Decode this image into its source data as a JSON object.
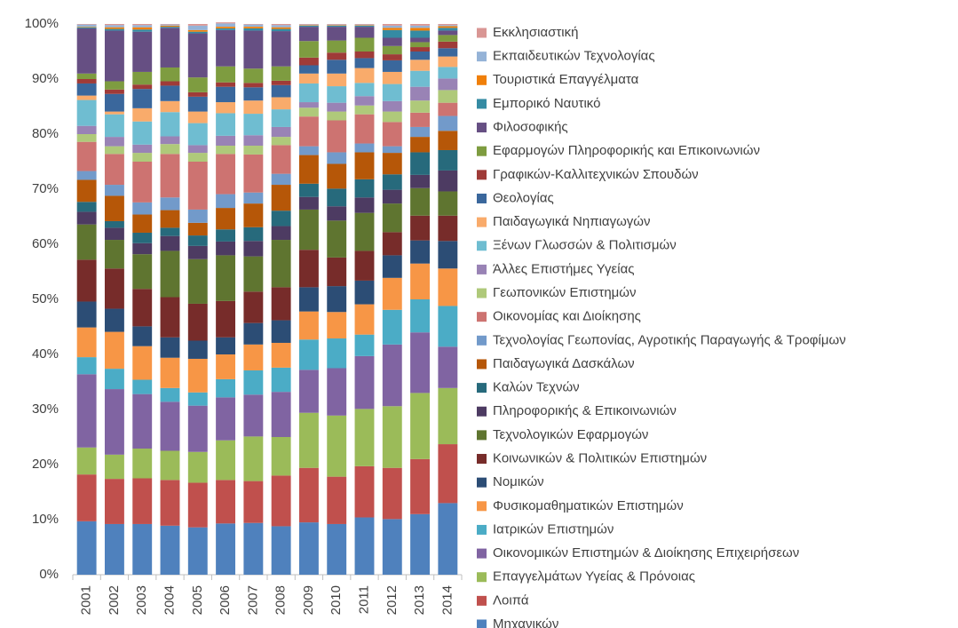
{
  "chart_data": {
    "type": "stacked_bar",
    "categories": [
      "2001",
      "2002",
      "2003",
      "2004",
      "2005",
      "2006",
      "2007",
      "2008",
      "2009",
      "2010",
      "2011",
      "2012",
      "2013",
      "2014"
    ],
    "ylim": [
      0,
      100
    ],
    "yticks": [
      {
        "value": 0,
        "label": "0%"
      },
      {
        "value": 10,
        "label": "10%"
      },
      {
        "value": 20,
        "label": "20%"
      },
      {
        "value": 30,
        "label": "30%"
      },
      {
        "value": 40,
        "label": "40%"
      },
      {
        "value": 50,
        "label": "50%"
      },
      {
        "value": 60,
        "label": "60%"
      },
      {
        "value": 70,
        "label": "70%"
      },
      {
        "value": 80,
        "label": "80%"
      },
      {
        "value": 90,
        "label": "90%"
      },
      {
        "value": 100,
        "label": "100%"
      }
    ],
    "grid": false,
    "legend": "right",
    "series": [
      {
        "name": "Μηχανικών",
        "color": "#4f81bd",
        "values": [
          9.7,
          9.2,
          9.2,
          8.9,
          8.6,
          9.3,
          9.4,
          8.8,
          9.5,
          9.2,
          10.4,
          10.1,
          11.0,
          13.0
        ]
      },
      {
        "name": "Λοιπά",
        "color": "#c0504d",
        "values": [
          8.5,
          8.2,
          8.3,
          8.3,
          8.1,
          7.9,
          7.6,
          9.2,
          9.9,
          8.6,
          9.3,
          9.3,
          10.0,
          10.7
        ]
      },
      {
        "name": "Επαγγελμάτων Υγείας & Πρόνοιας",
        "color": "#9bbb59",
        "values": [
          4.9,
          4.4,
          5.4,
          5.3,
          5.6,
          7.2,
          8.1,
          7.0,
          10.0,
          11.1,
          10.4,
          11.2,
          12.0,
          10.2
        ]
      },
      {
        "name": "Οικονομικών Επιστημών & Διοίκησης Επιχειρήσεων",
        "color": "#8064a2",
        "values": [
          13.3,
          11.9,
          9.9,
          8.9,
          8.4,
          7.8,
          7.6,
          8.2,
          7.8,
          8.6,
          9.6,
          11.2,
          11.0,
          7.5
        ]
      },
      {
        "name": "Ιατρικών Επιστημών",
        "color": "#4bacc6",
        "values": [
          3.1,
          3.7,
          2.6,
          2.5,
          2.4,
          3.3,
          4.4,
          4.4,
          5.5,
          5.4,
          3.9,
          6.3,
          6.0,
          7.4
        ]
      },
      {
        "name": "Φυσικομαθηματικών Επιστημών",
        "color": "#f79646",
        "values": [
          5.4,
          6.7,
          6.1,
          5.5,
          6.1,
          4.5,
          4.7,
          4.5,
          5.1,
          4.8,
          5.5,
          5.8,
          6.5,
          6.8
        ]
      },
      {
        "name": "Νομικών",
        "color": "#2c4d75",
        "values": [
          4.7,
          4.2,
          3.6,
          3.7,
          3.3,
          3.1,
          3.9,
          4.1,
          4.4,
          4.7,
          4.3,
          4.1,
          4.2,
          5.0
        ]
      },
      {
        "name": "Κοινωνικών & Πολιτικών Επιστημών",
        "color": "#772c2a",
        "values": [
          7.6,
          7.3,
          6.8,
          7.3,
          6.7,
          6.6,
          5.7,
          6.0,
          6.8,
          5.2,
          5.4,
          4.2,
          4.5,
          4.6
        ]
      },
      {
        "name": "Τεχνολογικών Εφαρμογών",
        "color": "#5f7530",
        "values": [
          6.4,
          5.2,
          6.3,
          8.4,
          8.1,
          8.3,
          6.4,
          8.6,
          7.3,
          6.7,
          6.9,
          5.2,
          5.0,
          4.4
        ]
      },
      {
        "name": "Πληροφορικής & Επικοινωνιών",
        "color": "#4d3b62",
        "values": [
          2.3,
          2.2,
          2.0,
          2.7,
          2.4,
          2.5,
          2.8,
          2.5,
          2.3,
          2.6,
          2.8,
          2.5,
          2.4,
          3.8
        ]
      },
      {
        "name": "Καλών Τεχνών",
        "color": "#276a7c",
        "values": [
          1.8,
          1.2,
          1.9,
          1.5,
          1.9,
          2.2,
          2.5,
          2.8,
          2.4,
          3.2,
          3.3,
          2.8,
          4.1,
          3.7
        ]
      },
      {
        "name": "Παιδαγωγικά Δασκάλων",
        "color": "#b65708",
        "values": [
          4.0,
          4.6,
          3.3,
          3.2,
          2.3,
          3.9,
          4.3,
          4.7,
          5.2,
          4.5,
          4.9,
          3.9,
          2.8,
          3.5
        ]
      },
      {
        "name": "Τεχνολογίας Γεωπονίας, Αγροτικής Παραγωγής & Τροφίμων",
        "color": "#729aca",
        "values": [
          1.6,
          2.0,
          2.2,
          2.3,
          2.4,
          2.5,
          2.0,
          2.0,
          1.6,
          2.1,
          1.6,
          1.2,
          1.8,
          2.7
        ]
      },
      {
        "name": "Οικονομίας και Διοίκησης",
        "color": "#cd7371",
        "values": [
          5.3,
          5.6,
          7.4,
          7.9,
          8.7,
          7.3,
          6.9,
          5.2,
          5.4,
          5.8,
          5.3,
          4.4,
          2.6,
          2.4
        ]
      },
      {
        "name": "Γεωπονικών Επιστημών",
        "color": "#afc97a",
        "values": [
          1.4,
          1.4,
          1.6,
          1.8,
          1.6,
          1.5,
          1.6,
          1.5,
          1.6,
          1.6,
          1.6,
          1.9,
          2.2,
          2.3
        ]
      },
      {
        "name": "Άλλες Επιστήμες Υγείας",
        "color": "#9983b5",
        "values": [
          1.5,
          1.7,
          1.5,
          1.4,
          1.4,
          1.8,
          1.9,
          1.8,
          1.0,
          1.6,
          1.7,
          1.9,
          2.5,
          2.1
        ]
      },
      {
        "name": "Ξένων Γλωσσών & Πολιτισμών",
        "color": "#6fbdd1",
        "values": [
          4.7,
          4.1,
          4.2,
          4.4,
          4.0,
          4.1,
          3.9,
          3.2,
          3.4,
          3.0,
          2.4,
          3.1,
          2.9,
          2.1
        ]
      },
      {
        "name": "Παιδαγωγικά Νηπιαγωγών",
        "color": "#f9ab6b",
        "values": [
          0.8,
          0.5,
          2.4,
          2.0,
          2.1,
          2.0,
          2.4,
          2.2,
          1.8,
          2.3,
          2.7,
          2.2,
          2.0,
          1.9
        ]
      },
      {
        "name": "Θεολογίας",
        "color": "#3a679c",
        "values": [
          2.2,
          3.2,
          3.5,
          2.8,
          2.7,
          2.8,
          2.4,
          2.2,
          1.5,
          2.5,
          1.8,
          2.1,
          1.5,
          1.5
        ]
      },
      {
        "name": "Γραφικών-Καλλιτεχνικών Σπουδών",
        "color": "#9f3b38",
        "values": [
          0.8,
          0.8,
          0.8,
          0.8,
          0.8,
          0.8,
          0.8,
          0.8,
          1.4,
          1.3,
          1.2,
          1.1,
          0.8,
          1.2
        ]
      },
      {
        "name": "Εφαρμογών Πληροφορικής και Επικοινωνιών",
        "color": "#7e9c40",
        "values": [
          1.0,
          1.5,
          2.3,
          2.5,
          2.7,
          2.9,
          2.6,
          2.6,
          3.0,
          2.2,
          2.5,
          1.5,
          0.9,
          1.2
        ]
      },
      {
        "name": "Φιλοσοφικής",
        "color": "#664f83",
        "values": [
          8.2,
          9.2,
          7.3,
          7.2,
          8.0,
          6.6,
          6.9,
          6.4,
          2.6,
          2.5,
          2.0,
          1.5,
          0.8,
          0.8
        ]
      },
      {
        "name": "Εμπορικό Ναυτικό",
        "color": "#358ba3",
        "values": [
          0.2,
          0.3,
          0.4,
          0.2,
          0.3,
          0.3,
          0.4,
          0.4,
          0.2,
          0.2,
          0.2,
          1.4,
          1.3,
          0.5
        ]
      },
      {
        "name": "Τουριστικά Επαγγέλματα",
        "color": "#f07f09",
        "values": [
          0.1,
          0.3,
          0.4,
          0.2,
          0.3,
          0.3,
          0.3,
          0.3,
          0.1,
          0.1,
          0.1,
          0.4,
          0.5,
          0.3
        ]
      },
      {
        "name": "Εκπαιδευτικών Τεχνολογίας",
        "color": "#95b3d7",
        "values": [
          0.4,
          0.4,
          0.4,
          0.2,
          0.8,
          0.6,
          0.4,
          0.4,
          0.1,
          0.1,
          0.1,
          0.4,
          0.4,
          0.2
        ]
      },
      {
        "name": "Εκκλησιαστική",
        "color": "#d99694",
        "values": [
          0.1,
          0.2,
          0.2,
          0.1,
          0.3,
          0.2,
          0.1,
          0.2,
          0.1,
          0.1,
          0.1,
          0.3,
          0.3,
          0.2
        ]
      }
    ]
  }
}
